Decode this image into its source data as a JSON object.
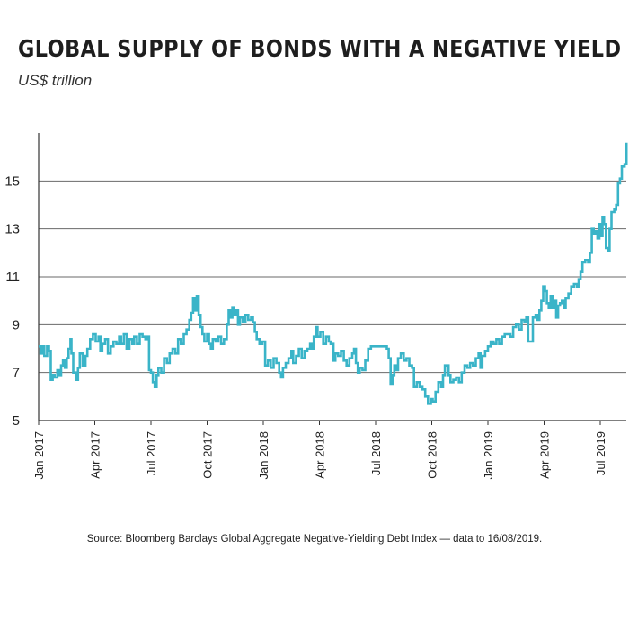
{
  "chart_data": {
    "type": "line",
    "title": "GLOBAL SUPPLY OF BONDS WITH A NEGATIVE YIELD",
    "subtitle": "US$ trillion",
    "xlabel": "",
    "ylabel": "US$ trillion",
    "ylim": [
      5,
      17
    ],
    "yticks": [
      5,
      7,
      9,
      11,
      13,
      15
    ],
    "xlim": [
      0,
      31.5
    ],
    "xticks": [
      {
        "label": "Jan 2017",
        "month": 0
      },
      {
        "label": "Apr 2017",
        "month": 3
      },
      {
        "label": "Jul 2017",
        "month": 6
      },
      {
        "label": "Oct 2017",
        "month": 9
      },
      {
        "label": "Jan 2018",
        "month": 12
      },
      {
        "label": "Apr 2018",
        "month": 15
      },
      {
        "label": "Jul 2018",
        "month": 18
      },
      {
        "label": "Oct 2018",
        "month": 21
      },
      {
        "label": "Jan 2019",
        "month": 24
      },
      {
        "label": "Apr 2019",
        "month": 27
      },
      {
        "label": "Jul 2019",
        "month": 30
      }
    ],
    "grid": true,
    "color": "#3ab4c8",
    "series": [
      {
        "name": "Negative-yielding debt",
        "points": [
          [
            0.0,
            8.1
          ],
          [
            0.1,
            7.8
          ],
          [
            0.2,
            8.1
          ],
          [
            0.3,
            7.7
          ],
          [
            0.45,
            8.1
          ],
          [
            0.55,
            7.9
          ],
          [
            0.65,
            6.7
          ],
          [
            0.75,
            6.9
          ],
          [
            0.85,
            6.8
          ],
          [
            1.0,
            7.1
          ],
          [
            1.1,
            6.9
          ],
          [
            1.2,
            7.3
          ],
          [
            1.3,
            7.5
          ],
          [
            1.4,
            7.2
          ],
          [
            1.5,
            7.6
          ],
          [
            1.6,
            8.0
          ],
          [
            1.7,
            8.4
          ],
          [
            1.75,
            7.8
          ],
          [
            1.85,
            7.0
          ],
          [
            2.0,
            6.7
          ],
          [
            2.1,
            7.2
          ],
          [
            2.2,
            7.8
          ],
          [
            2.35,
            7.3
          ],
          [
            2.5,
            7.7
          ],
          [
            2.6,
            8.0
          ],
          [
            2.75,
            8.4
          ],
          [
            2.9,
            8.6
          ],
          [
            3.05,
            8.3
          ],
          [
            3.2,
            8.5
          ],
          [
            3.3,
            7.9
          ],
          [
            3.4,
            8.2
          ],
          [
            3.55,
            8.4
          ],
          [
            3.7,
            7.8
          ],
          [
            3.85,
            8.1
          ],
          [
            4.0,
            8.3
          ],
          [
            4.15,
            8.2
          ],
          [
            4.3,
            8.5
          ],
          [
            4.4,
            8.2
          ],
          [
            4.55,
            8.6
          ],
          [
            4.7,
            8.0
          ],
          [
            4.85,
            8.4
          ],
          [
            5.0,
            8.2
          ],
          [
            5.1,
            8.5
          ],
          [
            5.25,
            8.2
          ],
          [
            5.4,
            8.6
          ],
          [
            5.55,
            8.5
          ],
          [
            5.7,
            8.4
          ],
          [
            5.8,
            8.5
          ],
          [
            5.9,
            7.1
          ],
          [
            6.0,
            7.0
          ],
          [
            6.1,
            6.6
          ],
          [
            6.2,
            6.4
          ],
          [
            6.3,
            6.9
          ],
          [
            6.4,
            7.2
          ],
          [
            6.55,
            7.0
          ],
          [
            6.7,
            7.6
          ],
          [
            6.85,
            7.4
          ],
          [
            7.0,
            7.8
          ],
          [
            7.15,
            8.0
          ],
          [
            7.3,
            7.8
          ],
          [
            7.45,
            8.4
          ],
          [
            7.6,
            8.2
          ],
          [
            7.75,
            8.6
          ],
          [
            7.9,
            8.8
          ],
          [
            8.05,
            9.2
          ],
          [
            8.15,
            9.5
          ],
          [
            8.25,
            10.1
          ],
          [
            8.35,
            9.6
          ],
          [
            8.45,
            10.2
          ],
          [
            8.55,
            9.4
          ],
          [
            8.65,
            8.9
          ],
          [
            8.75,
            8.6
          ],
          [
            8.85,
            8.3
          ],
          [
            9.0,
            8.6
          ],
          [
            9.1,
            8.2
          ],
          [
            9.2,
            8.0
          ],
          [
            9.3,
            8.4
          ],
          [
            9.45,
            8.3
          ],
          [
            9.6,
            8.5
          ],
          [
            9.75,
            8.2
          ],
          [
            9.9,
            8.4
          ],
          [
            10.05,
            9.0
          ],
          [
            10.15,
            9.6
          ],
          [
            10.25,
            9.3
          ],
          [
            10.35,
            9.7
          ],
          [
            10.45,
            9.4
          ],
          [
            10.55,
            9.6
          ],
          [
            10.65,
            9.0
          ],
          [
            10.75,
            9.3
          ],
          [
            10.9,
            9.1
          ],
          [
            11.05,
            9.4
          ],
          [
            11.2,
            9.2
          ],
          [
            11.35,
            9.3
          ],
          [
            11.45,
            9.1
          ],
          [
            11.55,
            8.7
          ],
          [
            11.65,
            8.4
          ],
          [
            11.8,
            8.2
          ],
          [
            11.95,
            8.3
          ],
          [
            12.1,
            7.3
          ],
          [
            12.25,
            7.5
          ],
          [
            12.4,
            7.2
          ],
          [
            12.55,
            7.6
          ],
          [
            12.7,
            7.4
          ],
          [
            12.85,
            7.0
          ],
          [
            12.95,
            6.8
          ],
          [
            13.05,
            7.2
          ],
          [
            13.2,
            7.4
          ],
          [
            13.35,
            7.6
          ],
          [
            13.5,
            7.9
          ],
          [
            13.6,
            7.4
          ],
          [
            13.75,
            7.7
          ],
          [
            13.9,
            8.0
          ],
          [
            14.05,
            7.6
          ],
          [
            14.2,
            7.9
          ],
          [
            14.35,
            8.0
          ],
          [
            14.5,
            8.2
          ],
          [
            14.6,
            8.0
          ],
          [
            14.7,
            8.5
          ],
          [
            14.8,
            8.9
          ],
          [
            14.9,
            8.5
          ],
          [
            15.05,
            8.7
          ],
          [
            15.2,
            8.2
          ],
          [
            15.35,
            8.5
          ],
          [
            15.5,
            8.3
          ],
          [
            15.6,
            8.2
          ],
          [
            15.75,
            7.5
          ],
          [
            15.85,
            7.8
          ],
          [
            16.0,
            7.7
          ],
          [
            16.15,
            7.9
          ],
          [
            16.3,
            7.5
          ],
          [
            16.45,
            7.3
          ],
          [
            16.6,
            7.6
          ],
          [
            16.75,
            7.8
          ],
          [
            16.85,
            8.0
          ],
          [
            16.95,
            7.4
          ],
          [
            17.05,
            7.0
          ],
          [
            17.15,
            7.2
          ],
          [
            17.3,
            7.1
          ],
          [
            17.45,
            7.5
          ],
          [
            17.6,
            8.0
          ],
          [
            17.75,
            8.1
          ],
          [
            17.9,
            8.1
          ],
          [
            18.05,
            8.1
          ],
          [
            18.2,
            8.1
          ],
          [
            18.35,
            8.1
          ],
          [
            18.5,
            8.1
          ],
          [
            18.6,
            8.0
          ],
          [
            18.7,
            7.6
          ],
          [
            18.8,
            6.5
          ],
          [
            18.9,
            6.9
          ],
          [
            19.0,
            7.3
          ],
          [
            19.1,
            7.1
          ],
          [
            19.2,
            7.6
          ],
          [
            19.35,
            7.8
          ],
          [
            19.5,
            7.5
          ],
          [
            19.65,
            7.6
          ],
          [
            19.8,
            7.3
          ],
          [
            19.95,
            7.2
          ],
          [
            20.05,
            6.4
          ],
          [
            20.2,
            6.6
          ],
          [
            20.35,
            6.4
          ],
          [
            20.5,
            6.3
          ],
          [
            20.65,
            6.0
          ],
          [
            20.8,
            5.7
          ],
          [
            20.95,
            5.9
          ],
          [
            21.05,
            5.8
          ],
          [
            21.2,
            6.2
          ],
          [
            21.35,
            6.6
          ],
          [
            21.5,
            6.4
          ],
          [
            21.6,
            6.9
          ],
          [
            21.7,
            7.3
          ],
          [
            21.8,
            7.3
          ],
          [
            21.9,
            6.9
          ],
          [
            22.0,
            6.6
          ],
          [
            22.15,
            6.7
          ],
          [
            22.3,
            6.8
          ],
          [
            22.45,
            6.6
          ],
          [
            22.6,
            7.0
          ],
          [
            22.75,
            7.3
          ],
          [
            22.9,
            7.2
          ],
          [
            23.05,
            7.4
          ],
          [
            23.2,
            7.3
          ],
          [
            23.35,
            7.6
          ],
          [
            23.5,
            7.8
          ],
          [
            23.6,
            7.2
          ],
          [
            23.7,
            7.7
          ],
          [
            23.85,
            7.9
          ],
          [
            24.0,
            8.1
          ],
          [
            24.15,
            8.3
          ],
          [
            24.3,
            8.2
          ],
          [
            24.45,
            8.4
          ],
          [
            24.6,
            8.2
          ],
          [
            24.75,
            8.5
          ],
          [
            24.9,
            8.6
          ],
          [
            25.05,
            8.6
          ],
          [
            25.2,
            8.5
          ],
          [
            25.35,
            8.9
          ],
          [
            25.5,
            9.0
          ],
          [
            25.65,
            8.8
          ],
          [
            25.8,
            9.2
          ],
          [
            25.95,
            9.1
          ],
          [
            26.05,
            9.3
          ],
          [
            26.15,
            8.3
          ],
          [
            26.3,
            8.3
          ],
          [
            26.4,
            9.3
          ],
          [
            26.55,
            9.4
          ],
          [
            26.65,
            9.2
          ],
          [
            26.75,
            9.6
          ],
          [
            26.85,
            10.0
          ],
          [
            26.95,
            10.6
          ],
          [
            27.05,
            10.4
          ],
          [
            27.15,
            9.9
          ],
          [
            27.25,
            9.7
          ],
          [
            27.35,
            10.2
          ],
          [
            27.45,
            9.7
          ],
          [
            27.55,
            10.0
          ],
          [
            27.65,
            9.3
          ],
          [
            27.75,
            9.8
          ],
          [
            27.85,
            9.9
          ],
          [
            27.95,
            10.0
          ],
          [
            28.05,
            9.7
          ],
          [
            28.15,
            10.1
          ],
          [
            28.3,
            10.3
          ],
          [
            28.45,
            10.6
          ],
          [
            28.6,
            10.7
          ],
          [
            28.75,
            10.6
          ],
          [
            28.85,
            10.9
          ],
          [
            28.95,
            11.2
          ],
          [
            29.05,
            11.6
          ],
          [
            29.2,
            11.7
          ],
          [
            29.35,
            11.6
          ],
          [
            29.45,
            12.0
          ],
          [
            29.55,
            13.0
          ],
          [
            29.65,
            12.8
          ],
          [
            29.75,
            12.9
          ],
          [
            29.85,
            12.6
          ],
          [
            29.95,
            13.2
          ],
          [
            30.05,
            12.7
          ],
          [
            30.12,
            13.5
          ],
          [
            30.2,
            13.2
          ],
          [
            30.3,
            12.2
          ],
          [
            30.4,
            12.1
          ],
          [
            30.5,
            13.0
          ],
          [
            30.6,
            13.7
          ],
          [
            30.75,
            13.8
          ],
          [
            30.85,
            14.0
          ],
          [
            30.95,
            14.9
          ],
          [
            31.05,
            15.1
          ],
          [
            31.15,
            15.6
          ],
          [
            31.3,
            15.7
          ],
          [
            31.4,
            16.6
          ]
        ]
      }
    ]
  },
  "source_text": "Source: Bloomberg Barclays Global Aggregate Negative-Yielding Debt Index — data to 16/08/2019."
}
